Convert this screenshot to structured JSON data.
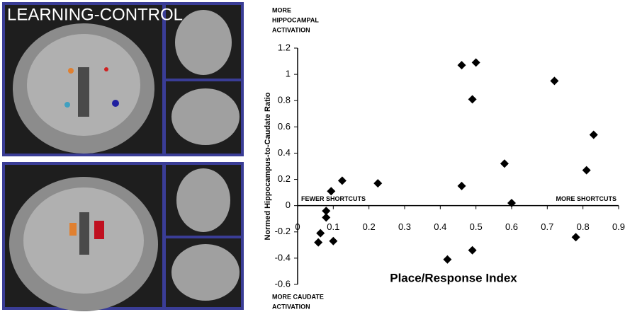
{
  "panel_label": "LEARNING-CONTROL",
  "chart_data": {
    "type": "scatter",
    "xlabel": "Place/Response Index",
    "ylabel": "Normed Hippocampus-to-Caudate Ratio",
    "annotations": {
      "top": [
        "MORE",
        "HIPPOCAMPAL",
        "ACTIVATION"
      ],
      "bottom": [
        "MORE CAUDATE",
        "ACTIVATION"
      ],
      "left": [
        "FEWER SHORTCUTS"
      ],
      "right": [
        "MORE SHORTCUTS"
      ]
    },
    "x": [
      0.064,
      0.058,
      0.094,
      0.08,
      0.08,
      0.1,
      0.125,
      0.225,
      0.42,
      0.46,
      0.5,
      0.49,
      0.46,
      0.49,
      0.58,
      0.6,
      0.72,
      0.78,
      0.81,
      0.83
    ],
    "y": [
      -0.21,
      -0.28,
      0.11,
      -0.04,
      -0.09,
      -0.27,
      0.19,
      0.17,
      -0.41,
      1.07,
      1.09,
      0.81,
      0.15,
      -0.34,
      0.32,
      0.02,
      0.95,
      -0.24,
      0.27,
      0.54
    ],
    "color": "#000000",
    "xlim": [
      0,
      0.9
    ],
    "xticks": [
      0,
      0.1,
      0.2,
      0.3,
      0.4,
      0.5,
      0.6,
      0.7,
      0.8,
      0.9
    ],
    "ylim": [
      -0.6,
      1.2
    ],
    "yticks": [
      -0.6,
      -0.4,
      -0.2,
      0,
      0.2,
      0.4,
      0.6,
      0.8,
      1,
      1.2
    ]
  }
}
